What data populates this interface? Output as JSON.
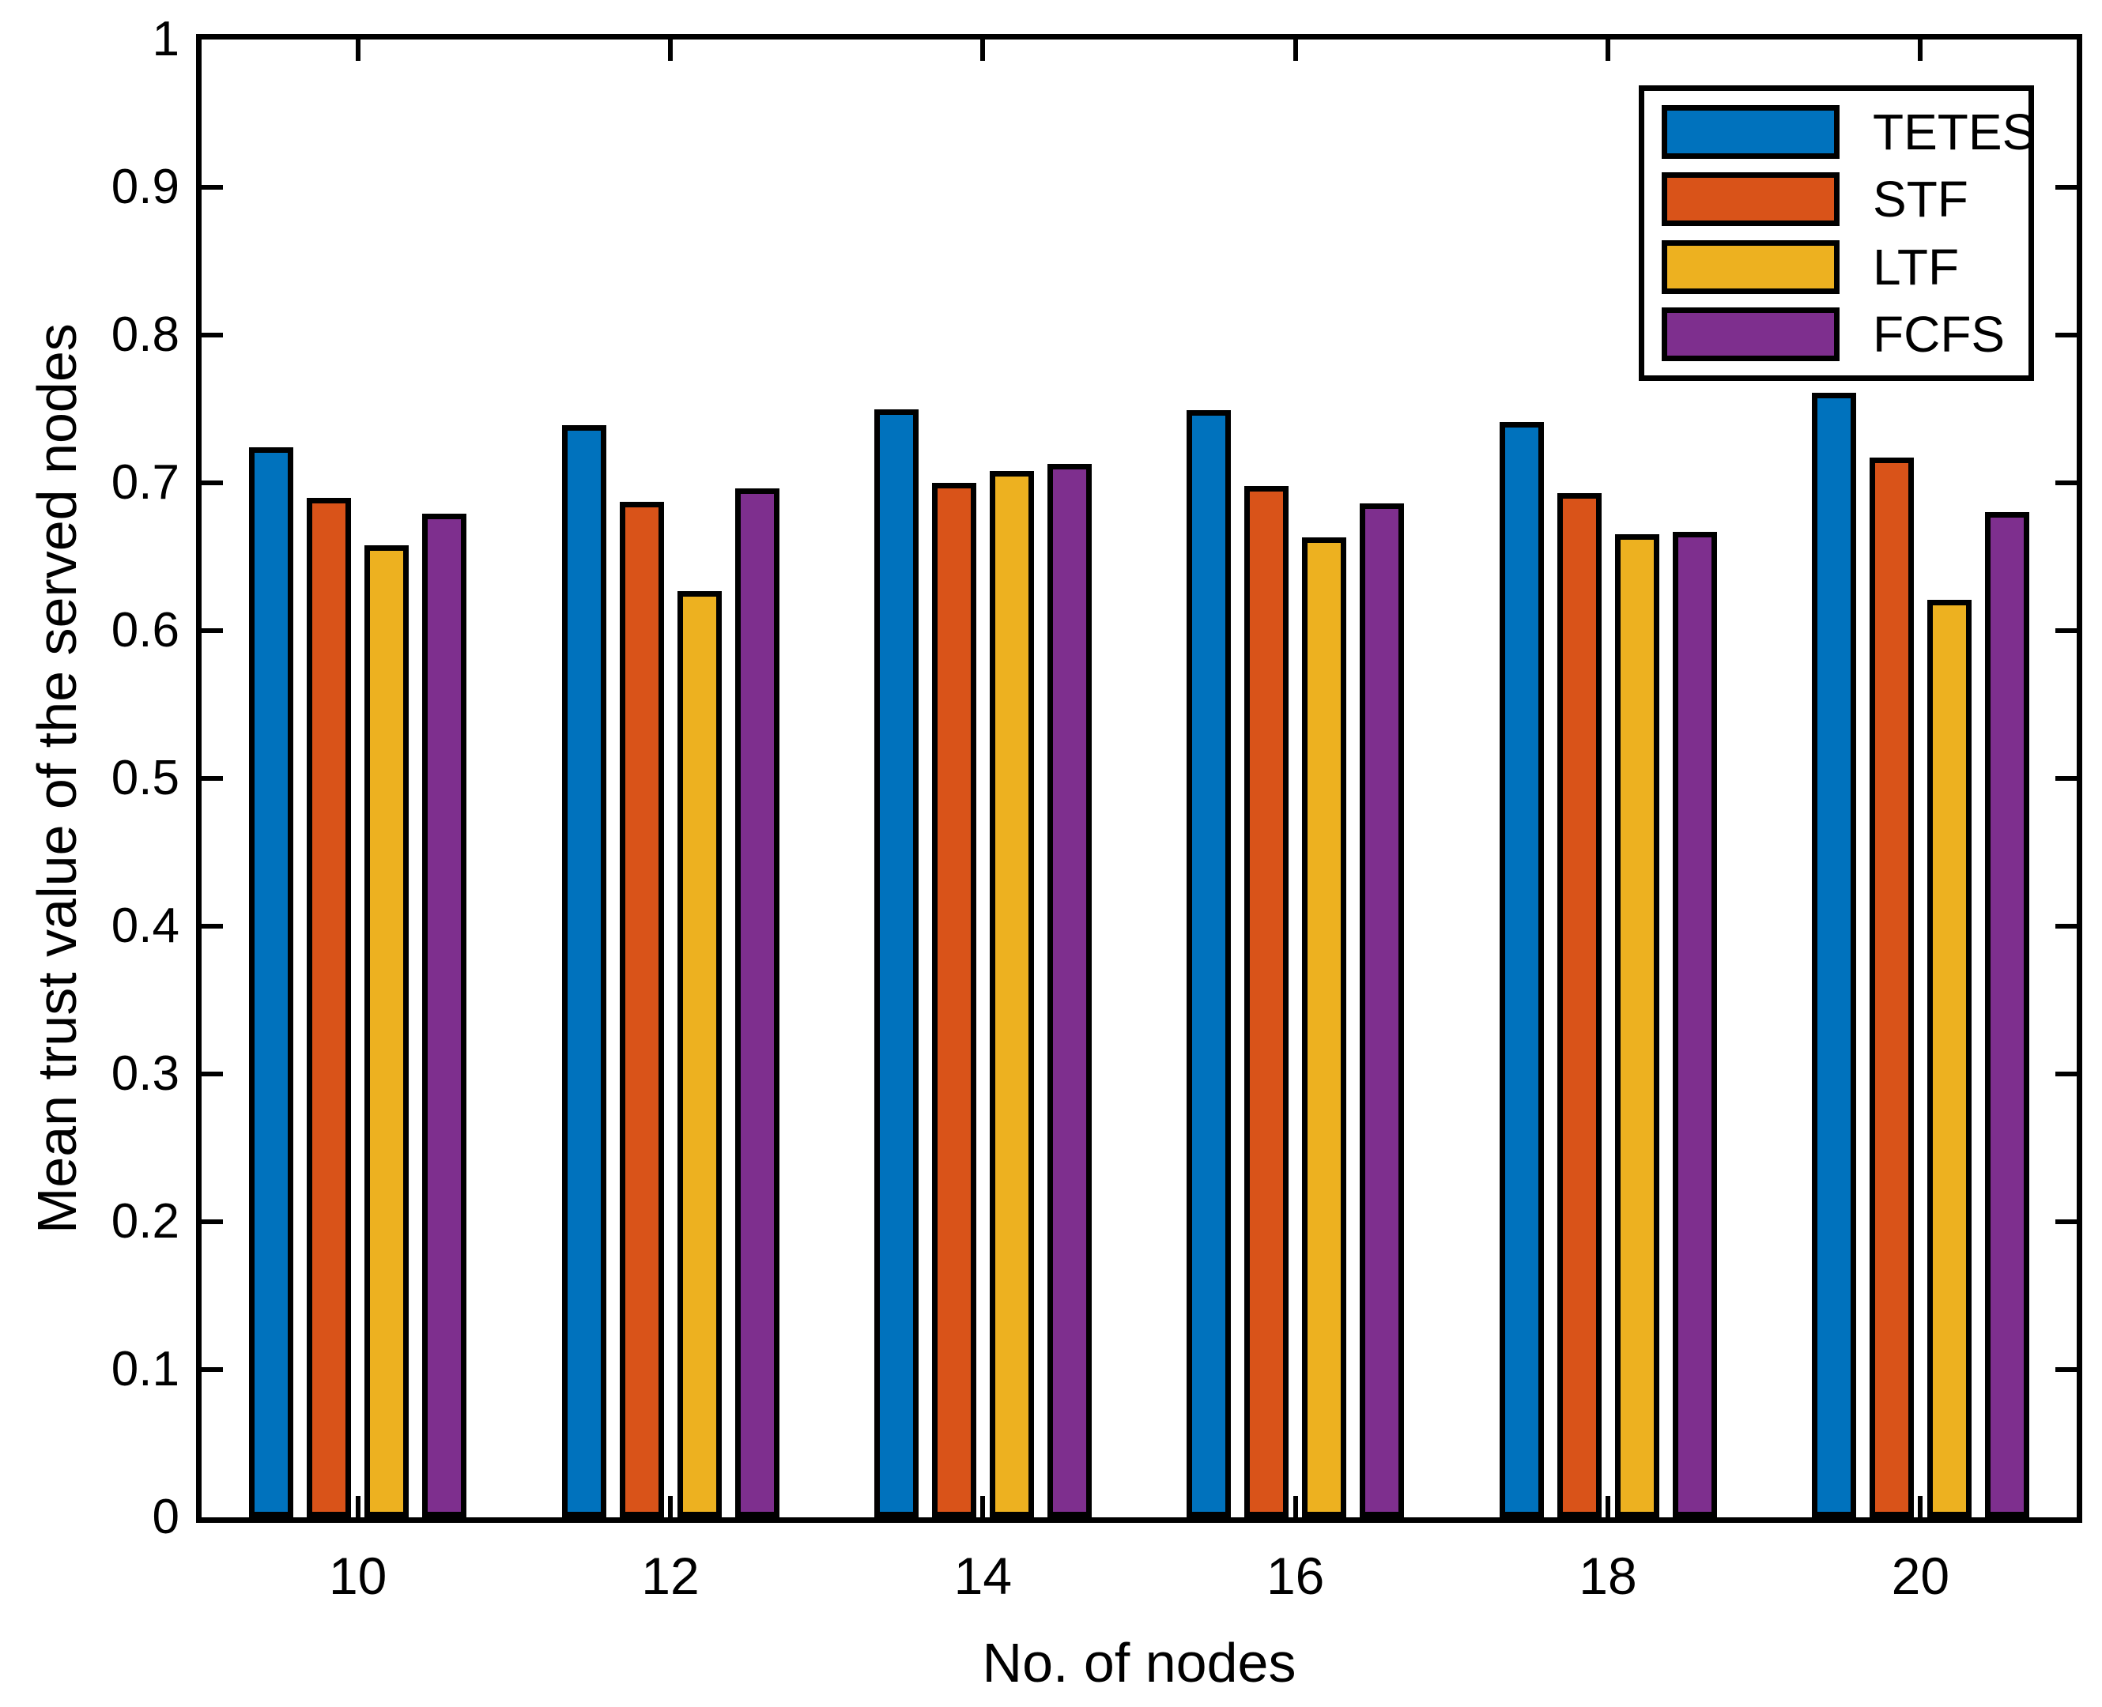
{
  "figure": {
    "background": "#ffffff",
    "axis_color": "#000000",
    "bar_edge_color": "#000000"
  },
  "chart_data": {
    "type": "bar",
    "title": "",
    "xlabel": "No. of nodes",
    "ylabel": "Mean trust value of the served nodes",
    "categories": [
      "10",
      "12",
      "14",
      "16",
      "18",
      "20"
    ],
    "series": [
      {
        "name": "TETES",
        "color": "#0072BD",
        "values": [
          0.724,
          0.739,
          0.75,
          0.749,
          0.741,
          0.761
        ]
      },
      {
        "name": "STF",
        "color": "#D95319",
        "values": [
          0.69,
          0.687,
          0.7,
          0.698,
          0.693,
          0.717
        ]
      },
      {
        "name": "LTF",
        "color": "#EDB120",
        "values": [
          0.658,
          0.627,
          0.708,
          0.663,
          0.665,
          0.621
        ]
      },
      {
        "name": "FCFS",
        "color": "#7E2F8E",
        "values": [
          0.679,
          0.696,
          0.713,
          0.686,
          0.667,
          0.68
        ]
      }
    ],
    "ylim": [
      0,
      1
    ],
    "yticks": [
      0,
      0.1,
      0.2,
      0.3,
      0.4,
      0.5,
      0.6,
      0.7,
      0.8,
      0.9,
      1
    ],
    "ytick_labels": [
      "0",
      "0.1",
      "0.2",
      "0.3",
      "0.4",
      "0.5",
      "0.6",
      "0.7",
      "0.8",
      "0.9",
      "1"
    ],
    "grid": false,
    "legend_position": "top-right",
    "legend_entries": [
      "TETES",
      "STF",
      "LTF",
      "FCFS"
    ]
  }
}
